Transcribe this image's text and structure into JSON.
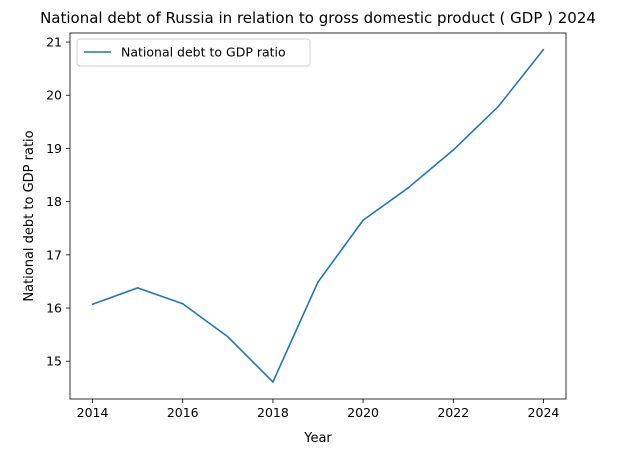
{
  "chart_data": {
    "type": "line",
    "title": "National debt of Russia in relation to gross domestic product ( GDP ) 2024",
    "xlabel": "Year",
    "ylabel": "National debt to GDP ratio",
    "x": [
      2014,
      2015,
      2016,
      2017,
      2018,
      2019,
      2020,
      2021,
      2022,
      2023,
      2024
    ],
    "series": [
      {
        "name": "National debt to GDP ratio",
        "values": [
          16.07,
          16.38,
          16.08,
          15.46,
          14.61,
          16.49,
          17.65,
          18.26,
          18.97,
          19.79,
          20.86
        ],
        "color": "#1f77b4"
      }
    ],
    "xlim": [
      2013.5,
      2024.5
    ],
    "ylim": [
      14.29,
      21.17
    ],
    "xticks": [
      "2014",
      "2016",
      "2018",
      "2020",
      "2022",
      "2024"
    ],
    "yticks": [
      "15",
      "16",
      "17",
      "18",
      "19",
      "20",
      "21"
    ],
    "grid": false,
    "legend_position": "top-left"
  }
}
